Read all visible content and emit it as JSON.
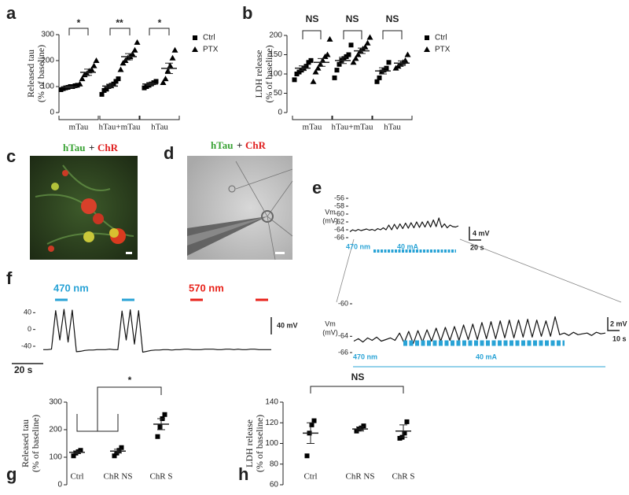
{
  "images": [
    {
      "label": "c",
      "caption": [
        "hTau",
        "+",
        "ChR"
      ]
    },
    {
      "label": "d",
      "caption": [
        "hTau",
        "+",
        "ChR"
      ]
    }
  ],
  "chart_data": [
    {
      "type": "dot",
      "label": "a",
      "ylabel": [
        "Released tau",
        "(% of baseline)"
      ],
      "groups": [
        "mTau",
        "hTau+mTau",
        "hTau"
      ],
      "ylim": [
        0,
        300
      ],
      "yticks": [
        0,
        100,
        200,
        300
      ],
      "annotations": [
        "*",
        "**",
        "*"
      ],
      "legend": "right",
      "series": [
        {
          "name": "Ctrl",
          "marker": "square",
          "color": "#000000",
          "values": [
            [
              88,
              92,
              95,
              97,
              100,
              100,
              103,
              105
            ],
            [
              70,
              85,
              90,
              100,
              105,
              110,
              120,
              130
            ],
            [
              95,
              100,
              105,
              110,
              115,
              120
            ]
          ],
          "means": [
            98,
            102,
            110
          ],
          "sem": [
            3,
            7,
            5
          ]
        },
        {
          "name": "PTX",
          "marker": "triangle",
          "color": "#000000",
          "values": [
            [
              110,
              130,
              145,
              150,
              160,
              165,
              180,
              200
            ],
            [
              165,
              190,
              200,
              210,
              215,
              225,
              240,
              270
            ],
            [
              115,
              130,
              160,
              180,
              210,
              240
            ]
          ],
          "means": [
            155,
            215,
            170
          ],
          "sem": [
            12,
            12,
            20
          ]
        }
      ]
    },
    {
      "type": "dot",
      "label": "b",
      "ylabel": [
        "LDH release",
        "(% of baseline)"
      ],
      "groups": [
        "mTau",
        "hTau+mTau",
        "hTau"
      ],
      "ylim": [
        0,
        200
      ],
      "yticks": [
        0,
        50,
        100,
        150,
        200
      ],
      "annotations": [
        "NS",
        "NS",
        "NS"
      ],
      "legend": "right",
      "series": [
        {
          "name": "Ctrl",
          "marker": "square",
          "color": "#000000",
          "values": [
            [
              85,
              100,
              105,
              110,
              115,
              120,
              130,
              135
            ],
            [
              90,
              110,
              125,
              135,
              140,
              145,
              150,
              175
            ],
            [
              80,
              90,
              105,
              110,
              115,
              130
            ]
          ],
          "means": [
            115,
            135,
            108
          ],
          "sem": [
            6,
            8,
            8
          ]
        },
        {
          "name": "PTX",
          "marker": "triangle",
          "color": "#000000",
          "values": [
            [
              80,
              105,
              115,
              125,
              135,
              145,
              150,
              190
            ],
            [
              130,
              140,
              150,
              160,
              165,
              170,
              180,
              195
            ],
            [
              115,
              120,
              125,
              130,
              135,
              150
            ]
          ],
          "means": [
            130,
            160,
            128
          ],
          "sem": [
            10,
            7,
            6
          ]
        }
      ]
    },
    {
      "type": "dot",
      "label": "g",
      "ylabel": [
        "Released tau",
        "(% of baseline)"
      ],
      "groups": [
        "Ctrl",
        "ChR NS",
        "ChR S"
      ],
      "ylim": [
        0,
        300
      ],
      "yticks": [
        0,
        100,
        200,
        300
      ],
      "annotations": [
        "*"
      ],
      "marker": "square",
      "color": "#000000",
      "values": [
        [
          105,
          115,
          120,
          125
        ],
        [
          105,
          115,
          125,
          135
        ],
        [
          175,
          210,
          240,
          255
        ]
      ],
      "means": [
        118,
        122,
        220
      ],
      "sem": [
        5,
        7,
        20
      ]
    },
    {
      "type": "dot",
      "label": "h",
      "ylabel": [
        "LDH release",
        "(% of baseline)"
      ],
      "groups": [
        "Ctrl",
        "ChR NS",
        "ChR S"
      ],
      "ylim": [
        60,
        140
      ],
      "yticks": [
        60,
        80,
        100,
        120,
        140
      ],
      "annotations": [
        "NS"
      ],
      "marker": "square",
      "color": "#000000",
      "values": [
        [
          88,
          110,
          118,
          122
        ],
        [
          112,
          114,
          115,
          117
        ],
        [
          105,
          106,
          110,
          121
        ]
      ],
      "means": [
        110,
        114,
        112
      ],
      "sem": [
        10,
        2,
        6
      ]
    },
    {
      "type": "trace",
      "label": "e",
      "ylabel": [
        "Vm",
        "(mV)"
      ],
      "ylim": [
        -66,
        -56
      ],
      "yticks": [
        -66,
        -64,
        -62,
        -60,
        -58,
        -56
      ],
      "annotations": [
        "470 nm",
        "40 mA",
        "4 mV",
        "20 s"
      ],
      "color": "#111111",
      "values": [
        -64.5,
        -64,
        -64.3,
        -63.9,
        -64.2,
        -64,
        -63.8,
        -64.1,
        -63.9,
        -64.2,
        -63.7,
        -64,
        -63.5,
        -64,
        -62.8,
        -64,
        -62.6,
        -63.8,
        -62.5,
        -63.7,
        -62.3,
        -63.6,
        -62.2,
        -63.5,
        -62,
        -63.4,
        -62,
        -63.3,
        -61.8,
        -63.3,
        -61.5,
        -63.2,
        -61,
        -63.4,
        -62.5,
        -63.5,
        -62.8,
        -63.2,
        -63.3,
        -63
      ]
    },
    {
      "type": "trace",
      "ylabel": [
        "Vm",
        "(mV)"
      ],
      "ylim": [
        -66,
        -60
      ],
      "yticks": [
        -66,
        -64,
        -60
      ],
      "annotations": [
        "470 nm",
        "40 mA",
        "2 mV",
        "10 s"
      ],
      "color": "#111111",
      "values": [
        -64.6,
        -64.3,
        -64.7,
        -64.2,
        -64.5,
        -64.1,
        -64.6,
        -64.4,
        -64.2,
        -64.5,
        -63.6,
        -64.8,
        -63.4,
        -64.9,
        -63.3,
        -64.7,
        -63.2,
        -64.6,
        -63,
        -64.6,
        -62.9,
        -64.5,
        -62.8,
        -64.5,
        -62.6,
        -64.4,
        -62.5,
        -64.4,
        -62.3,
        -64.3,
        -62.2,
        -64.3,
        -62.1,
        -64.2,
        -62,
        -64.2,
        -62,
        -64.1,
        -61.9,
        -64.1,
        -62,
        -64,
        -62.1,
        -64,
        -61.6,
        -63.8,
        -63.6,
        -63.9,
        -63.5,
        -63.8,
        -63.7,
        -63.6,
        -63.9,
        -63.5,
        -63.7,
        -63.6
      ]
    },
    {
      "type": "trace",
      "label": "f",
      "ylim": [
        -55,
        50
      ],
      "yticks": [
        -40,
        0,
        40
      ],
      "annotations": [
        "470 nm",
        "570 nm",
        "40 mV",
        "20 s"
      ],
      "color": "#111111",
      "values": [
        -48,
        -48,
        -47,
        45,
        -25,
        48,
        -30,
        46,
        -53,
        -52,
        -50,
        -49,
        -49,
        -48,
        -48,
        -48,
        -47,
        -48,
        -48,
        44,
        -25,
        47,
        -35,
        45,
        -54,
        -52,
        -50,
        -49,
        -49,
        -48,
        -48,
        -49,
        -48,
        -48,
        -47,
        -47,
        -48,
        -48,
        -48,
        -47,
        -47,
        -47,
        -48,
        -48,
        -47,
        -47,
        -48,
        -47,
        -48,
        -48,
        -47,
        -47,
        -48,
        -48,
        -48,
        -48
      ]
    }
  ]
}
